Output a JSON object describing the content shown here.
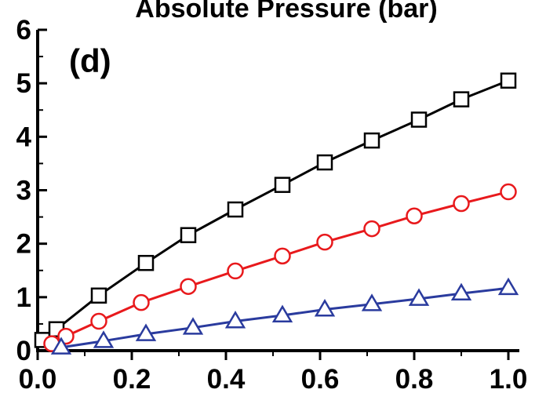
{
  "chart_data": {
    "type": "line",
    "title": "Absolute Pressure (bar)",
    "panel_label": "(d)",
    "xlim": [
      0.0,
      1.0
    ],
    "ylim": [
      0,
      6
    ],
    "x_ticks": [
      "0.0",
      "0.2",
      "0.4",
      "0.6",
      "0.8",
      "1.0"
    ],
    "y_ticks": [
      "0",
      "1",
      "2",
      "3",
      "4",
      "5",
      "6"
    ],
    "grid": false,
    "series": [
      {
        "marker": "square",
        "color": "#000000",
        "points": [
          [
            0.01,
            0.2
          ],
          [
            0.04,
            0.4
          ],
          [
            0.13,
            1.03
          ],
          [
            0.23,
            1.64
          ],
          [
            0.32,
            2.16
          ],
          [
            0.42,
            2.64
          ],
          [
            0.52,
            3.1
          ],
          [
            0.61,
            3.52
          ],
          [
            0.71,
            3.93
          ],
          [
            0.81,
            4.32
          ],
          [
            0.9,
            4.7
          ],
          [
            1.0,
            5.05
          ]
        ]
      },
      {
        "marker": "circle",
        "color": "#e8191c",
        "points": [
          [
            0.03,
            0.13
          ],
          [
            0.06,
            0.27
          ],
          [
            0.13,
            0.55
          ],
          [
            0.22,
            0.9
          ],
          [
            0.32,
            1.2
          ],
          [
            0.42,
            1.49
          ],
          [
            0.52,
            1.77
          ],
          [
            0.61,
            2.03
          ],
          [
            0.71,
            2.28
          ],
          [
            0.8,
            2.52
          ],
          [
            0.9,
            2.75
          ],
          [
            1.0,
            2.97
          ]
        ]
      },
      {
        "marker": "triangle",
        "color": "#2a3b9e",
        "points": [
          [
            0.05,
            0.06
          ],
          [
            0.14,
            0.18
          ],
          [
            0.23,
            0.31
          ],
          [
            0.33,
            0.43
          ],
          [
            0.42,
            0.55
          ],
          [
            0.52,
            0.66
          ],
          [
            0.61,
            0.77
          ],
          [
            0.71,
            0.87
          ],
          [
            0.81,
            0.97
          ],
          [
            0.9,
            1.07
          ],
          [
            1.0,
            1.17
          ]
        ]
      }
    ]
  }
}
